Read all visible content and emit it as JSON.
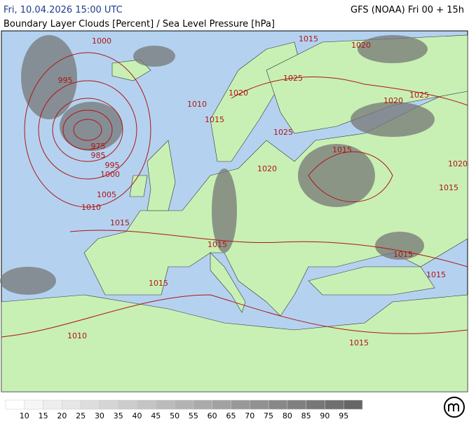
{
  "header": {
    "datetime": "Fri, 10.04.2026 15:00 UTC",
    "model": "GFS (NOAA) Fri 00 + 15h",
    "subtitle": "Boundary Layer Clouds [Percent] / Sea Level Pressure [hPa]"
  },
  "isobar_labels": [
    1000,
    1015,
    1020,
    995,
    1025,
    1025,
    1020,
    1020,
    1010,
    1015,
    975,
    985,
    995,
    1000,
    1025,
    1015,
    1020,
    1020,
    1005,
    1010,
    1015,
    1015,
    1015,
    1015,
    1015,
    1015,
    1010,
    1015
  ],
  "legend": {
    "levels": [
      10,
      15,
      20,
      25,
      30,
      35,
      40,
      45,
      50,
      55,
      60,
      65,
      70,
      75,
      80,
      85,
      90,
      95
    ],
    "colors": [
      "#ffffff",
      "#f6f6f6",
      "#eeeeee",
      "#e6e6e6",
      "#dddddd",
      "#d5d5d5",
      "#cccccc",
      "#c4c4c4",
      "#bbbbbb",
      "#b3b3b3",
      "#aaaaaa",
      "#a2a2a2",
      "#999999",
      "#919191",
      "#888888",
      "#808080",
      "#777777",
      "#6f6f6f",
      "#666666"
    ]
  }
}
